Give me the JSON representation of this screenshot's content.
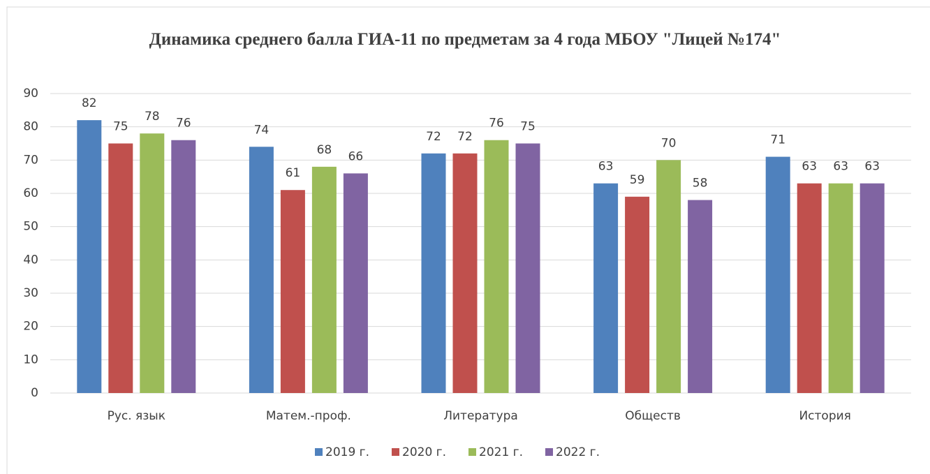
{
  "chart_data": {
    "type": "bar",
    "title": "Динамика среднего балла ГИА-11 по предметам за 4 года МБОУ \"Лицей №174\"",
    "categories": [
      "Рус. язык",
      "Матем.-проф.",
      "Литература",
      "Обществ",
      "История"
    ],
    "series": [
      {
        "name": "2019 г.",
        "color": "#4f81bd",
        "values": [
          82,
          74,
          72,
          63,
          71
        ]
      },
      {
        "name": "2020 г.",
        "color": "#c0504d",
        "values": [
          75,
          61,
          72,
          59,
          63
        ]
      },
      {
        "name": "2021 г.",
        "color": "#9bbb59",
        "values": [
          78,
          68,
          76,
          70,
          63
        ]
      },
      {
        "name": "2022 г.",
        "color": "#8064a2",
        "values": [
          76,
          66,
          75,
          58,
          63
        ]
      }
    ],
    "ylim": [
      0,
      90
    ],
    "yticks": [
      0,
      10,
      20,
      30,
      40,
      50,
      60,
      70,
      80,
      90
    ],
    "grid": true,
    "legend": "bottom"
  }
}
